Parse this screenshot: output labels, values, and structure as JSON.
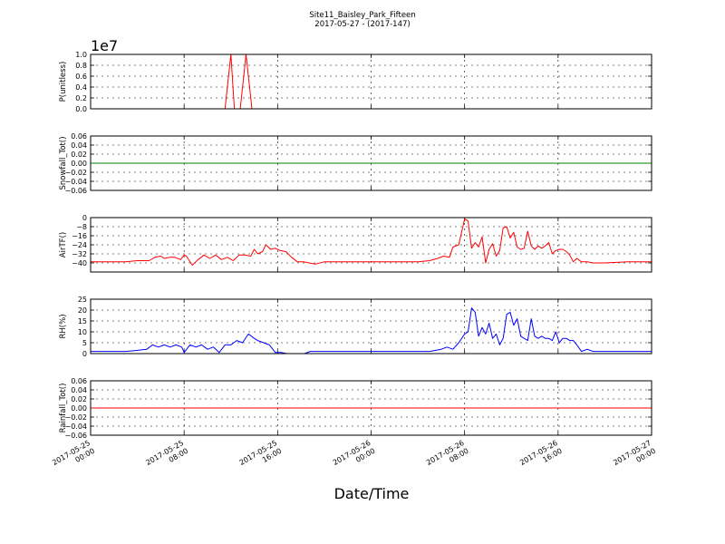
{
  "title_line1": "Site11_Baisley_Park_Fifteen",
  "title_line2": "2017-05-27 - (2017-147)",
  "chart_data": [
    {
      "type": "line",
      "ylabel": "P(unitless)",
      "offset_text": "1e7",
      "ylim": [
        0,
        1.0
      ],
      "yticks": [
        0.0,
        0.2,
        0.4,
        0.6,
        0.8,
        1.0
      ],
      "ytick_labels": [
        "0.0",
        "0.2",
        "0.4",
        "0.6",
        "0.8",
        "1.0"
      ],
      "color": "#ff0000",
      "grid": true,
      "x_hours": [
        0,
        11,
        11.5,
        12.0,
        12.3,
        12.8,
        13.3,
        13.8,
        14.3,
        48
      ],
      "values": [
        0,
        0,
        0,
        1.0,
        0,
        0,
        1.0,
        0,
        0,
        0
      ]
    },
    {
      "type": "line",
      "ylabel": "Snowfall_Tot()",
      "ylim": [
        -0.06,
        0.06
      ],
      "yticks": [
        -0.06,
        -0.04,
        -0.02,
        0.0,
        0.02,
        0.04,
        0.06
      ],
      "ytick_labels": [
        "−0.06",
        "−0.04",
        "−0.02",
        "0.00",
        "0.02",
        "0.04",
        "0.06"
      ],
      "color": "#008000",
      "line_width": 4,
      "grid": true,
      "x_hours": [
        0,
        48
      ],
      "values": [
        0,
        0
      ]
    },
    {
      "type": "line",
      "ylabel": "AirTF()",
      "ylim": [
        -48,
        0
      ],
      "yticks": [
        -40,
        -32,
        -24,
        -16,
        -8,
        0
      ],
      "ytick_labels": [
        "−40",
        "−32",
        "−24",
        "−16",
        "−8",
        "0"
      ],
      "color": "#ff0000",
      "grid": true,
      "x_hours": [
        0,
        3,
        4,
        5,
        5.5,
        6,
        6.3,
        6.8,
        7.2,
        7.7,
        8.0,
        8.2,
        8.7,
        9.2,
        9.7,
        10.2,
        10.7,
        11.2,
        11.7,
        12.2,
        12.7,
        13.2,
        13.7,
        14.0,
        14.3,
        14.7,
        15.0,
        15.4,
        15.8,
        16.2,
        16.7,
        17.2,
        17.7,
        18.2,
        18.7,
        19.2,
        20.0,
        21.0,
        22.0,
        24.0,
        26.0,
        28.0,
        29.0,
        29.7,
        30.2,
        30.7,
        31.0,
        31.5,
        32.0,
        32.3,
        32.6,
        32.9,
        33.2,
        33.5,
        33.8,
        34.1,
        34.4,
        34.7,
        35.0,
        35.3,
        35.6,
        35.9,
        36.2,
        36.5,
        36.8,
        37.1,
        37.4,
        37.7,
        38.0,
        38.3,
        38.6,
        38.9,
        39.2,
        39.5,
        39.8,
        40.1,
        40.4,
        40.7,
        41.0,
        41.3,
        41.6,
        42.0,
        42.5,
        43.0,
        44.0,
        46.0,
        48.0
      ],
      "values": [
        -39,
        -39,
        -38,
        -38,
        -35,
        -34,
        -36,
        -35,
        -35,
        -37,
        -33,
        -34,
        -42,
        -37,
        -33,
        -36,
        -33,
        -37,
        -35,
        -38,
        -33,
        -33,
        -34,
        -28,
        -32,
        -30,
        -24,
        -28,
        -27,
        -29,
        -30,
        -35,
        -39,
        -39,
        -40,
        -41,
        -39,
        -39,
        -39,
        -39,
        -39,
        -39,
        -38,
        -36,
        -34,
        -35,
        -26,
        -24,
        -1,
        -3,
        -27,
        -22,
        -26,
        -17,
        -40,
        -28,
        -23,
        -34,
        -29,
        -9,
        -8,
        -18,
        -13,
        -26,
        -28,
        -27,
        -12,
        -25,
        -28,
        -25,
        -27,
        -25,
        -22,
        -32,
        -29,
        -28,
        -28,
        -30,
        -33,
        -39,
        -36,
        -39,
        -39,
        -40,
        -40,
        -39,
        -39
      ]
    },
    {
      "type": "line",
      "ylabel": "RH(%)",
      "ylim": [
        0,
        25
      ],
      "yticks": [
        0,
        5,
        10,
        15,
        20,
        25
      ],
      "ytick_labels": [
        "0",
        "5",
        "10",
        "15",
        "20",
        "25"
      ],
      "color": "#0000ff",
      "grid": true,
      "x_hours": [
        0,
        3,
        4,
        4.8,
        5.3,
        5.8,
        6.3,
        6.8,
        7.3,
        7.8,
        8.0,
        8.5,
        9.0,
        9.5,
        10.0,
        10.5,
        11.0,
        11.5,
        12.0,
        12.5,
        13.0,
        13.5,
        14.0,
        14.3,
        14.8,
        15.3,
        15.8,
        16.3,
        16.8,
        17.3,
        17.8,
        18.3,
        18.8,
        19.3,
        20.0,
        21.0,
        22.0,
        24.0,
        26.0,
        28.0,
        29.0,
        30.0,
        30.5,
        31.0,
        31.5,
        32.0,
        32.3,
        32.6,
        32.9,
        33.2,
        33.5,
        33.8,
        34.1,
        34.4,
        34.7,
        35.0,
        35.3,
        35.6,
        35.9,
        36.2,
        36.5,
        36.8,
        37.1,
        37.4,
        37.7,
        38.0,
        38.3,
        38.6,
        38.9,
        39.2,
        39.5,
        39.8,
        40.1,
        40.4,
        40.7,
        41.0,
        41.3,
        41.6,
        42.0,
        42.5,
        43.0,
        44.0,
        46.0,
        48.0
      ],
      "values": [
        1,
        1,
        1.5,
        2,
        4,
        3,
        4,
        3,
        4,
        3,
        0.5,
        4,
        3,
        4,
        2,
        3,
        0.5,
        4,
        4,
        6,
        5,
        9,
        7,
        6,
        5,
        4,
        0.5,
        0.5,
        0,
        0,
        0,
        0,
        1,
        1,
        1,
        1,
        1,
        1,
        1,
        1,
        1,
        2,
        3,
        2,
        5,
        9,
        10,
        21,
        19,
        8,
        12,
        9,
        14,
        7,
        9,
        4,
        7,
        18,
        19,
        13,
        16,
        8,
        7,
        6,
        16,
        8,
        7,
        8,
        7,
        7,
        6,
        10,
        5,
        7,
        7,
        6,
        6,
        4,
        1,
        2,
        1,
        1,
        1,
        1
      ]
    },
    {
      "type": "line",
      "ylabel": "Rainfall_Tot()",
      "ylim": [
        -0.06,
        0.06
      ],
      "yticks": [
        -0.06,
        -0.04,
        -0.02,
        0.0,
        0.02,
        0.04,
        0.06
      ],
      "ytick_labels": [
        "−0.06",
        "−0.04",
        "−0.02",
        "0.00",
        "0.02",
        "0.04",
        "0.06"
      ],
      "color": "#ff0000",
      "grid": true,
      "x_hours": [
        0,
        48
      ],
      "values": [
        0,
        0
      ]
    }
  ],
  "x_axis": {
    "xlabel": "Date/Time",
    "range_hours": [
      0,
      48
    ],
    "tick_hours": [
      0,
      8,
      16,
      24,
      32,
      40,
      48
    ],
    "tick_labels": [
      [
        "2017-05-25",
        "00:00"
      ],
      [
        "2017-05-25",
        "08:00"
      ],
      [
        "2017-05-25",
        "16:00"
      ],
      [
        "2017-05-26",
        "00:00"
      ],
      [
        "2017-05-26",
        "08:00"
      ],
      [
        "2017-05-26",
        "16:00"
      ],
      [
        "2017-05-27",
        "00:00"
      ]
    ]
  }
}
